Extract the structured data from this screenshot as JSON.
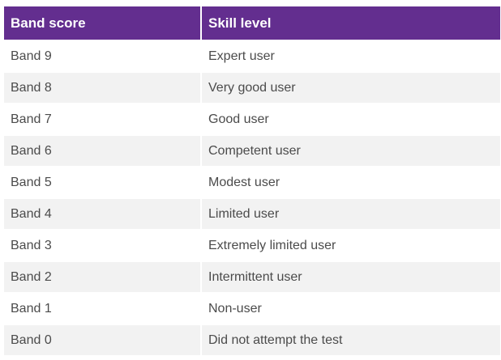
{
  "table": {
    "headers": [
      "Band score",
      "Skill level"
    ],
    "rows": [
      [
        "Band 9",
        "Expert user"
      ],
      [
        "Band 8",
        "Very good user"
      ],
      [
        "Band 7",
        "Good user"
      ],
      [
        "Band 6",
        "Competent user"
      ],
      [
        "Band 5",
        "Modest user"
      ],
      [
        "Band 4",
        "Limited user"
      ],
      [
        "Band 3",
        "Extremely limited user"
      ],
      [
        "Band 2",
        "Intermittent user"
      ],
      [
        "Band 1",
        "Non-user"
      ],
      [
        "Band 0",
        "Did not attempt the test"
      ]
    ]
  },
  "colors": {
    "header_background": "#632e8f",
    "header_text": "#ffffff",
    "stripe_background": "#f2f2f2",
    "body_text": "#4b4b4b"
  }
}
